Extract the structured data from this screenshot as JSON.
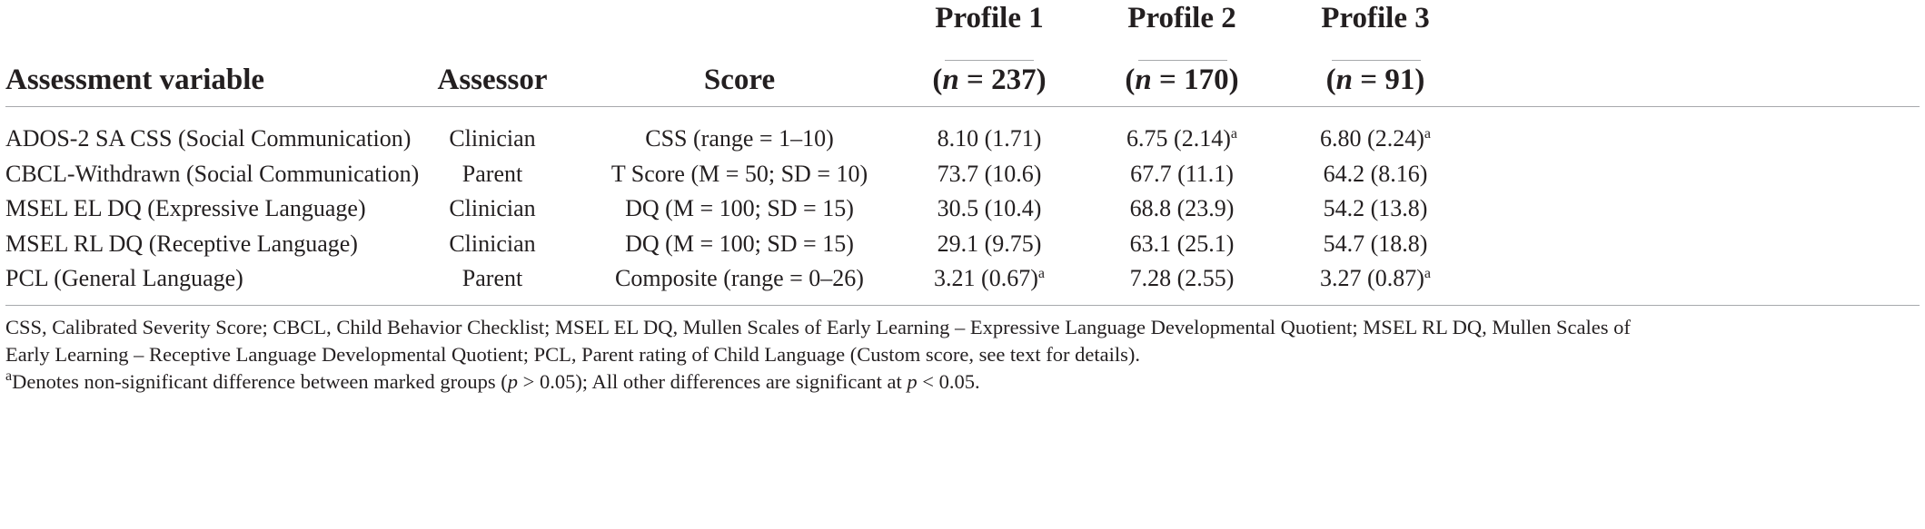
{
  "headers": {
    "variable": "Assessment variable",
    "assessor": "Assessor",
    "score": "Score",
    "profiles": [
      {
        "title": "Profile 1",
        "n_prefix": "(",
        "n_var": "n",
        "n_rest": " = 237)"
      },
      {
        "title": "Profile 2",
        "n_prefix": "(",
        "n_var": "n",
        "n_rest": " = 170)"
      },
      {
        "title": "Profile 3",
        "n_prefix": "(",
        "n_var": "n",
        "n_rest": " = 91)"
      }
    ]
  },
  "rows": [
    {
      "variable": "ADOS-2 SA CSS (Social Communication)",
      "assessor": "Clinician",
      "score": "CSS (range = 1–10)",
      "p1": "8.10 (1.71)",
      "p1_mark": "",
      "p2": "6.75 (2.14)",
      "p2_mark": "a",
      "p3": "6.80 (2.24)",
      "p3_mark": "a"
    },
    {
      "variable": "CBCL-Withdrawn (Social Communication)",
      "assessor": "Parent",
      "score": "T Score (M = 50; SD = 10)",
      "p1": "73.7 (10.6)",
      "p1_mark": "",
      "p2": "67.7 (11.1)",
      "p2_mark": "",
      "p3": "64.2 (8.16)",
      "p3_mark": ""
    },
    {
      "variable": "MSEL EL DQ (Expressive Language)",
      "assessor": "Clinician",
      "score": "DQ (M = 100; SD = 15)",
      "p1": "30.5 (10.4)",
      "p1_mark": "",
      "p2": "68.8 (23.9)",
      "p2_mark": "",
      "p3": "54.2 (13.8)",
      "p3_mark": ""
    },
    {
      "variable": "MSEL RL DQ (Receptive Language)",
      "assessor": "Clinician",
      "score": "DQ (M = 100; SD = 15)",
      "p1": "29.1 (9.75)",
      "p1_mark": "",
      "p2": "63.1 (25.1)",
      "p2_mark": "",
      "p3": "54.7 (18.8)",
      "p3_mark": ""
    },
    {
      "variable": "PCL (General Language)",
      "assessor": "Parent",
      "score": "Composite (range = 0–26)",
      "p1": "3.21 (0.67)",
      "p1_mark": "a",
      "p2": "7.28 (2.55)",
      "p2_mark": "",
      "p3": "3.27 (0.87)",
      "p3_mark": "a"
    }
  ],
  "footnotes": {
    "abbrev_line1": "CSS, Calibrated Severity Score; CBCL, Child Behavior Checklist; MSEL EL DQ, Mullen Scales of Early Learning – Expressive Language Developmental Quotient; MSEL RL DQ, Mullen Scales of",
    "abbrev_line2": "Early Learning – Receptive Language Developmental Quotient; PCL, Parent rating of Child Language (Custom score, see text for details).",
    "sig_mark": "a",
    "sig_part1": "Denotes non-significant difference between marked groups (",
    "sig_p1": "p",
    "sig_part2": " > 0.05); All other differences are significant at ",
    "sig_p2": "p",
    "sig_part3": " < 0.05."
  }
}
